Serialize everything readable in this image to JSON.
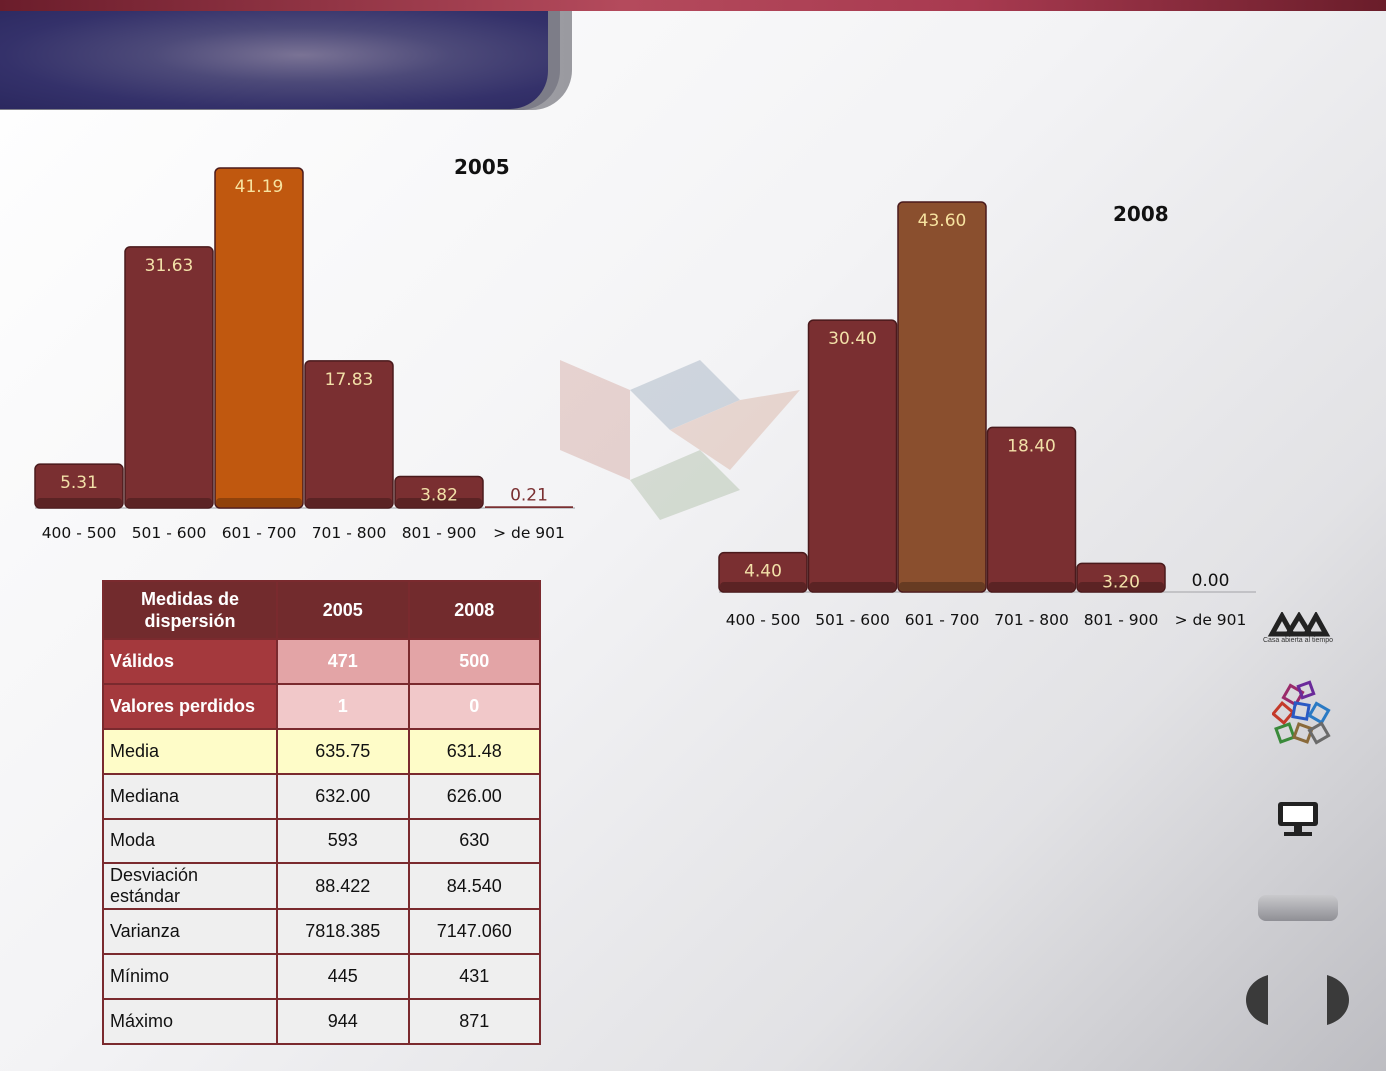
{
  "chart_data": [
    {
      "type": "bar",
      "title": "2005",
      "categories": [
        "400 - 500",
        "501 - 600",
        "601 - 700",
        "701 - 800",
        "801 - 900",
        "> de 901"
      ],
      "values": [
        5.31,
        31.63,
        41.19,
        17.83,
        3.82,
        0.21
      ],
      "value_labels": [
        "5.31",
        "31.63",
        "41.19",
        "17.83",
        "3.82",
        "0.21"
      ],
      "ylim": [
        0,
        41.19
      ],
      "highlight_index": 2,
      "bar_color": "#7a2f31",
      "highlight_color": "#c0580f",
      "grid": false
    },
    {
      "type": "bar",
      "title": "2008",
      "categories": [
        "400 - 500",
        "501 - 600",
        "601 - 700",
        "701 - 800",
        "801 - 900",
        "> de 901"
      ],
      "values": [
        4.4,
        30.4,
        43.6,
        18.4,
        3.2,
        0.0
      ],
      "value_labels": [
        "4.40",
        "30.40",
        "43.60",
        "18.40",
        "3.20",
        "0.00"
      ],
      "ylim": [
        0,
        43.6
      ],
      "highlight_index": 2,
      "bar_color": "#7a2f31",
      "highlight_color": "#8a4f2e",
      "grid": false
    }
  ],
  "stats_table": {
    "header": {
      "label": "Medidas de dispersión",
      "col1": "2005",
      "col2": "2008"
    },
    "rows": [
      {
        "label": "Válidos",
        "v2005": "471",
        "v2008": "500"
      },
      {
        "label": "Valores perdidos",
        "v2005": "1",
        "v2008": "0"
      },
      {
        "label": "Media",
        "v2005": "635.75",
        "v2008": "631.48"
      },
      {
        "label": "Mediana",
        "v2005": "632.00",
        "v2008": "626.00"
      },
      {
        "label": "Moda",
        "v2005": "593",
        "v2008": "630"
      },
      {
        "label": "Desviación estándar",
        "v2005": "88.422",
        "v2008": "84.540"
      },
      {
        "label": "Varianza",
        "v2005": "7818.385",
        "v2008": "7147.060"
      },
      {
        "label": "Mínimo",
        "v2005": "445",
        "v2008": "431"
      },
      {
        "label": "Máximo",
        "v2005": "944",
        "v2008": "871"
      }
    ]
  },
  "sidebar": {
    "logo_text": "Casa abierta al tiempo",
    "icons": [
      "uam-logo-icon",
      "colored-boxes-logo-icon",
      "monitor-icon",
      "home-pill-button",
      "prev-arrow-icon",
      "next-arrow-icon"
    ]
  },
  "colors": {
    "accent_dark": "#722b2d",
    "accent_bar": "#7a2f31",
    "highlight_orange": "#c0580f",
    "title_panel": "#34316a"
  }
}
